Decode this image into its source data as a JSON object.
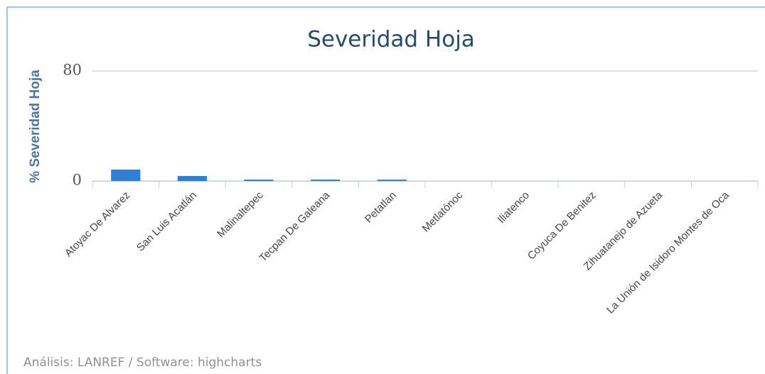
{
  "chart_data": {
    "type": "bar",
    "title": "Severidad Hoja",
    "y_label": "% Severidad Hoja",
    "categories": [
      "Atoyac De Alvarez",
      "San Luis Acatlán",
      "Malinaltepec",
      "Tecpan De Galeana",
      "Petatlan",
      "Metlatónoc",
      "Iliatenco",
      "Coyuca De Benitez",
      "Zihuatanejo de Azueta",
      "La Unión de Isidoro Montes de Oca"
    ],
    "values": [
      8.3,
      3.6,
      1,
      1,
      1,
      0,
      0,
      0,
      0,
      0
    ],
    "color": "#2f7ed8",
    "ylim": [
      0,
      80
    ],
    "yticks": [
      0,
      80
    ],
    "grid": true,
    "credits": "Análisis: LANREF / Software: highcharts"
  }
}
